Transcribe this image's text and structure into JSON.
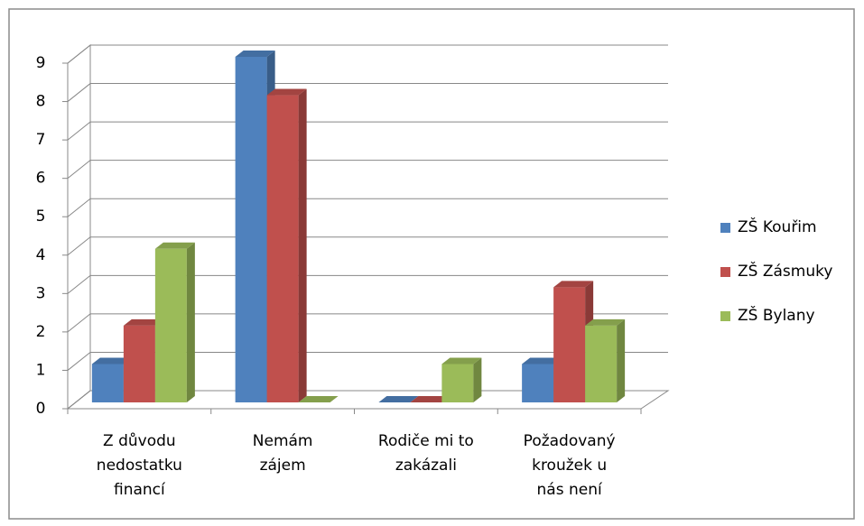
{
  "chart_data": {
    "type": "bar3d",
    "categories": [
      [
        "Z důvodu",
        "nedostatku",
        "financí"
      ],
      [
        "Nemám",
        "zájem"
      ],
      [
        "Rodiče mi to",
        "zakázali"
      ],
      [
        "Požadovaný",
        "kroužek u",
        "nás není"
      ]
    ],
    "series": [
      {
        "name": "ZŠ Kouřim",
        "color": "#4f81bd",
        "values": [
          1,
          9,
          0,
          1
        ]
      },
      {
        "name": "ZŠ Zásmuky",
        "color": "#c0504d",
        "values": [
          2,
          8,
          0,
          3
        ]
      },
      {
        "name": "ZŠ Bylany",
        "color": "#9bbb59",
        "values": [
          4,
          0,
          1,
          2
        ]
      }
    ],
    "ylim": [
      0,
      9
    ],
    "yticks": [
      0,
      1,
      2,
      3,
      4,
      5,
      6,
      7,
      8,
      9
    ],
    "grid": true,
    "legend": "right"
  }
}
